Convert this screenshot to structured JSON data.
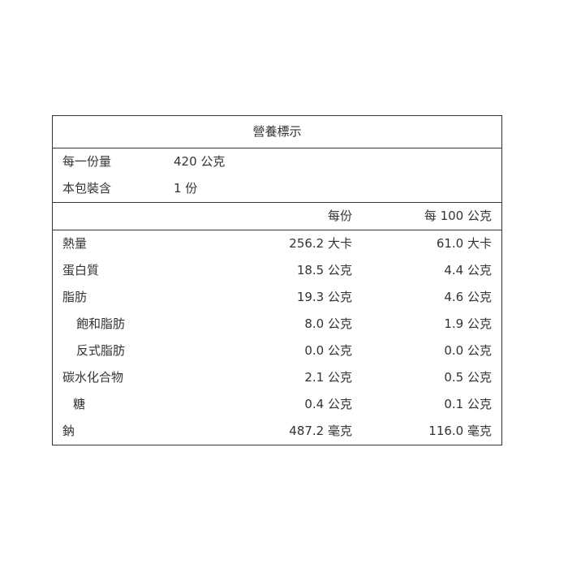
{
  "title": "營養標示",
  "serving": [
    {
      "label": "每一份量",
      "value": "420 公克"
    },
    {
      "label": "本包裝含",
      "value": "1 份"
    }
  ],
  "columns": {
    "per_serving": "每份",
    "per_100": "每 100 公克"
  },
  "nutrients": [
    {
      "name": "熱量",
      "per_serving": "256.2 大卡",
      "per_100": "61.0 大卡",
      "indent": 0
    },
    {
      "name": "蛋白質",
      "per_serving": "18.5 公克",
      "per_100": "4.4 公克",
      "indent": 0
    },
    {
      "name": "脂肪",
      "per_serving": "19.3 公克",
      "per_100": "4.6 公克",
      "indent": 0
    },
    {
      "name": "飽和脂肪",
      "per_serving": "8.0 公克",
      "per_100": "1.9 公克",
      "indent": 1
    },
    {
      "name": "反式脂肪",
      "per_serving": "0.0 公克",
      "per_100": "0.0 公克",
      "indent": 1
    },
    {
      "name": "碳水化合物",
      "per_serving": "2.1 公克",
      "per_100": "0.5 公克",
      "indent": 0
    },
    {
      "name": "糖",
      "per_serving": "0.4 公克",
      "per_100": "0.1 公克",
      "indent": 2
    },
    {
      "name": "鈉",
      "per_serving": "487.2 毫克",
      "per_100": "116.0 毫克",
      "indent": 0
    }
  ]
}
